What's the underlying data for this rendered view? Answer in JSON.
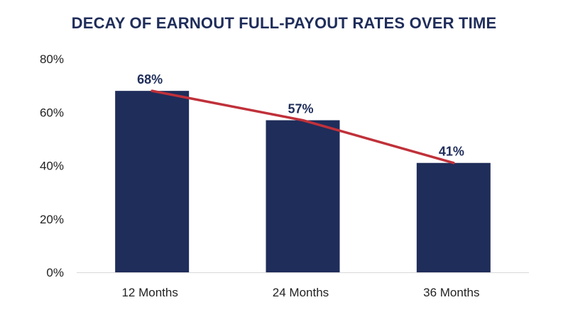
{
  "chart_data": {
    "type": "bar",
    "title": "DECAY OF EARNOUT FULL-PAYOUT RATES OVER TIME",
    "categories": [
      "12 Months",
      "24 Months",
      "36 Months"
    ],
    "values": [
      68,
      57,
      41
    ],
    "data_labels": [
      "68%",
      "57%",
      "41%"
    ],
    "ylim": [
      0,
      80
    ],
    "yticks": [
      0,
      20,
      40,
      60,
      80
    ],
    "ytick_labels": [
      "0%",
      "20%",
      "40%",
      "60%",
      "80%"
    ],
    "xlabel": "",
    "ylabel": "",
    "grid": false,
    "legend": "none",
    "overlay_line": {
      "type": "line",
      "values": [
        68,
        57,
        41
      ]
    },
    "colors": {
      "bar": "#1f2d5a",
      "line": "#c0313a",
      "title": "#1f2d5a",
      "axis": "#d9d9d9"
    }
  }
}
